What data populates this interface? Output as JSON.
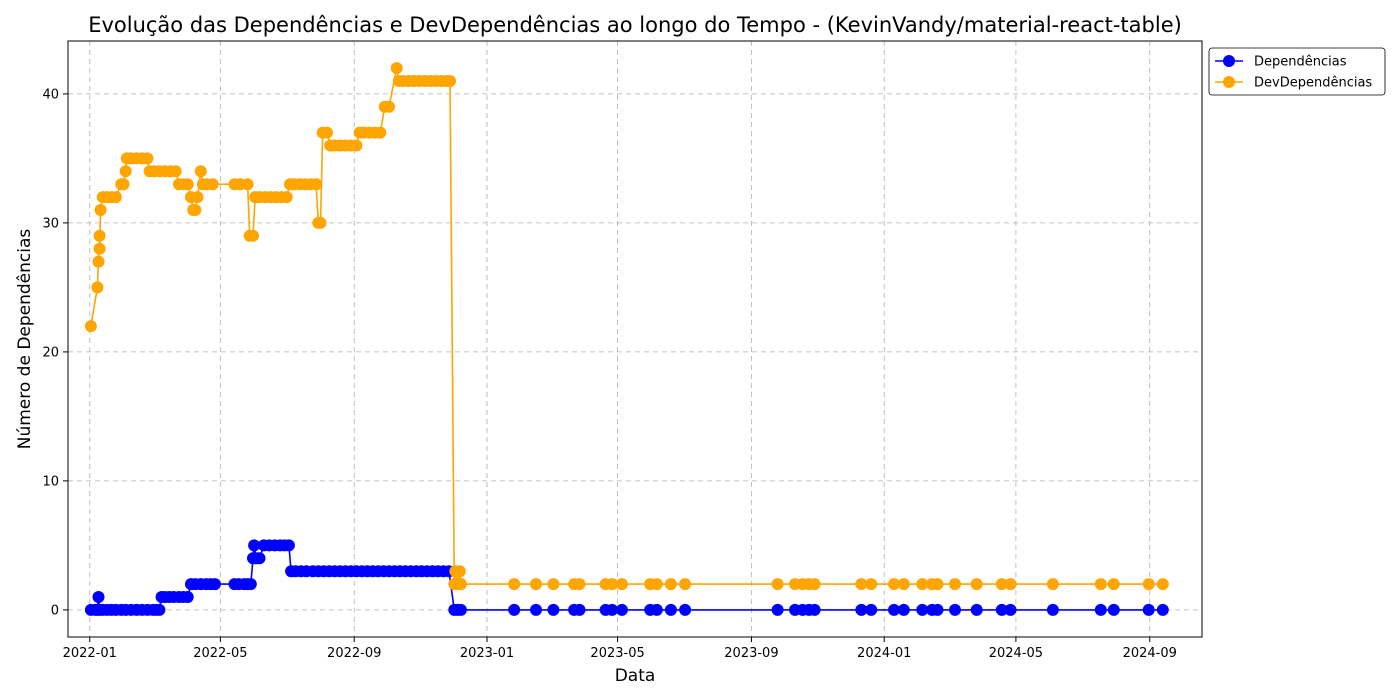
{
  "chart_data": {
    "type": "line",
    "title": "Evolução das Dependências e DevDependências ao longo do Tempo - (KevinVandy/material-react-table)",
    "xlabel": "Data",
    "ylabel": "Número de Dependências",
    "xlim": [
      "2021-12-12",
      "2024-10-19"
    ],
    "ylim": [
      -2.1,
      44.1
    ],
    "x_ticks": [
      "2022-01",
      "2022-05",
      "2022-09",
      "2023-01",
      "2023-05",
      "2023-09",
      "2024-01",
      "2024-05",
      "2024-09"
    ],
    "x_tick_dates": [
      "2022-01-01",
      "2022-05-01",
      "2022-09-01",
      "2023-01-01",
      "2023-05-01",
      "2023-09-01",
      "2024-01-01",
      "2024-05-01",
      "2024-09-01"
    ],
    "y_ticks": [
      0,
      10,
      20,
      30,
      40
    ],
    "grid": true,
    "legend_position": "outside-top-right",
    "series": [
      {
        "name": "Dependências",
        "color": "#0000ff",
        "points": [
          [
            "2022-01-02",
            0
          ],
          [
            "2022-01-06",
            0
          ],
          [
            "2022-01-08",
            0
          ],
          [
            "2022-01-09",
            1
          ],
          [
            "2022-01-10",
            0
          ],
          [
            "2022-01-13",
            0
          ],
          [
            "2022-01-17",
            0
          ],
          [
            "2022-01-21",
            0
          ],
          [
            "2022-01-25",
            0
          ],
          [
            "2022-01-30",
            0
          ],
          [
            "2022-02-03",
            0
          ],
          [
            "2022-02-08",
            0
          ],
          [
            "2022-02-13",
            0
          ],
          [
            "2022-02-18",
            0
          ],
          [
            "2022-02-23",
            0
          ],
          [
            "2022-02-28",
            0
          ],
          [
            "2022-03-03",
            0
          ],
          [
            "2022-03-06",
            0
          ],
          [
            "2022-03-08",
            1
          ],
          [
            "2022-03-11",
            1
          ],
          [
            "2022-03-15",
            1
          ],
          [
            "2022-03-19",
            1
          ],
          [
            "2022-03-24",
            1
          ],
          [
            "2022-03-28",
            1
          ],
          [
            "2022-04-01",
            1
          ],
          [
            "2022-04-04",
            2
          ],
          [
            "2022-04-08",
            2
          ],
          [
            "2022-04-13",
            2
          ],
          [
            "2022-04-18",
            2
          ],
          [
            "2022-04-22",
            2
          ],
          [
            "2022-04-26",
            2
          ],
          [
            "2022-05-14",
            2
          ],
          [
            "2022-05-18",
            2
          ],
          [
            "2022-05-23",
            2
          ],
          [
            "2022-05-26",
            2
          ],
          [
            "2022-05-29",
            2
          ],
          [
            "2022-05-31",
            4
          ],
          [
            "2022-06-01",
            5
          ],
          [
            "2022-06-03",
            4
          ],
          [
            "2022-06-06",
            4
          ],
          [
            "2022-06-10",
            5
          ],
          [
            "2022-06-15",
            5
          ],
          [
            "2022-06-20",
            5
          ],
          [
            "2022-06-25",
            5
          ],
          [
            "2022-06-29",
            5
          ],
          [
            "2022-07-03",
            5
          ],
          [
            "2022-07-05",
            3
          ],
          [
            "2022-07-09",
            3
          ],
          [
            "2022-07-14",
            3
          ],
          [
            "2022-07-19",
            3
          ],
          [
            "2022-07-25",
            3
          ],
          [
            "2022-07-30",
            3
          ],
          [
            "2022-08-04",
            3
          ],
          [
            "2022-08-09",
            3
          ],
          [
            "2022-08-14",
            3
          ],
          [
            "2022-08-19",
            3
          ],
          [
            "2022-08-24",
            3
          ],
          [
            "2022-08-29",
            3
          ],
          [
            "2022-09-03",
            3
          ],
          [
            "2022-09-08",
            3
          ],
          [
            "2022-09-13",
            3
          ],
          [
            "2022-09-18",
            3
          ],
          [
            "2022-09-23",
            3
          ],
          [
            "2022-09-28",
            3
          ],
          [
            "2022-10-03",
            3
          ],
          [
            "2022-10-08",
            3
          ],
          [
            "2022-10-13",
            3
          ],
          [
            "2022-10-18",
            3
          ],
          [
            "2022-10-23",
            3
          ],
          [
            "2022-10-28",
            3
          ],
          [
            "2022-11-02",
            3
          ],
          [
            "2022-11-07",
            3
          ],
          [
            "2022-11-12",
            3
          ],
          [
            "2022-11-17",
            3
          ],
          [
            "2022-11-22",
            3
          ],
          [
            "2022-11-27",
            3
          ],
          [
            "2022-12-02",
            0
          ],
          [
            "2022-12-05",
            0
          ],
          [
            "2022-12-08",
            0
          ],
          [
            "2023-01-26",
            0
          ],
          [
            "2023-02-15",
            0
          ],
          [
            "2023-03-03",
            0
          ],
          [
            "2023-03-22",
            0
          ],
          [
            "2023-03-27",
            0
          ],
          [
            "2023-04-20",
            0
          ],
          [
            "2023-04-26",
            0
          ],
          [
            "2023-05-05",
            0
          ],
          [
            "2023-05-31",
            0
          ],
          [
            "2023-06-06",
            0
          ],
          [
            "2023-06-19",
            0
          ],
          [
            "2023-07-02",
            0
          ],
          [
            "2023-09-25",
            0
          ],
          [
            "2023-10-11",
            0
          ],
          [
            "2023-10-18",
            0
          ],
          [
            "2023-10-24",
            0
          ],
          [
            "2023-10-29",
            0
          ],
          [
            "2023-12-11",
            0
          ],
          [
            "2023-12-20",
            0
          ],
          [
            "2024-01-10",
            0
          ],
          [
            "2024-01-19",
            0
          ],
          [
            "2024-02-05",
            0
          ],
          [
            "2024-02-14",
            0
          ],
          [
            "2024-02-19",
            0
          ],
          [
            "2024-03-06",
            0
          ],
          [
            "2024-03-26",
            0
          ],
          [
            "2024-04-18",
            0
          ],
          [
            "2024-04-26",
            0
          ],
          [
            "2024-06-04",
            0
          ],
          [
            "2024-07-18",
            0
          ],
          [
            "2024-07-30",
            0
          ],
          [
            "2024-08-31",
            0
          ],
          [
            "2024-09-13",
            0
          ]
        ]
      },
      {
        "name": "DevDependências",
        "color": "#ffa500",
        "points": [
          [
            "2022-01-02",
            22
          ],
          [
            "2022-01-08",
            25
          ],
          [
            "2022-01-09",
            27
          ],
          [
            "2022-01-10",
            29
          ],
          [
            "2022-01-10",
            28
          ],
          [
            "2022-01-11",
            31
          ],
          [
            "2022-01-13",
            32
          ],
          [
            "2022-01-17",
            32
          ],
          [
            "2022-01-21",
            32
          ],
          [
            "2022-01-25",
            32
          ],
          [
            "2022-01-30",
            33
          ],
          [
            "2022-02-01",
            33
          ],
          [
            "2022-02-03",
            34
          ],
          [
            "2022-02-04",
            35
          ],
          [
            "2022-02-08",
            35
          ],
          [
            "2022-02-13",
            35
          ],
          [
            "2022-02-18",
            35
          ],
          [
            "2022-02-23",
            35
          ],
          [
            "2022-02-25",
            34
          ],
          [
            "2022-03-01",
            34
          ],
          [
            "2022-03-06",
            34
          ],
          [
            "2022-03-11",
            34
          ],
          [
            "2022-03-16",
            34
          ],
          [
            "2022-03-21",
            34
          ],
          [
            "2022-03-24",
            33
          ],
          [
            "2022-03-28",
            33
          ],
          [
            "2022-04-01",
            33
          ],
          [
            "2022-04-04",
            32
          ],
          [
            "2022-04-06",
            31
          ],
          [
            "2022-04-08",
            31
          ],
          [
            "2022-04-10",
            32
          ],
          [
            "2022-04-13",
            34
          ],
          [
            "2022-04-15",
            33
          ],
          [
            "2022-04-19",
            33
          ],
          [
            "2022-04-24",
            33
          ],
          [
            "2022-05-14",
            33
          ],
          [
            "2022-05-19",
            33
          ],
          [
            "2022-05-26",
            33
          ],
          [
            "2022-05-28",
            29
          ],
          [
            "2022-05-31",
            29
          ],
          [
            "2022-06-02",
            32
          ],
          [
            "2022-06-06",
            32
          ],
          [
            "2022-06-11",
            32
          ],
          [
            "2022-06-16",
            32
          ],
          [
            "2022-06-21",
            32
          ],
          [
            "2022-06-26",
            32
          ],
          [
            "2022-07-01",
            32
          ],
          [
            "2022-07-04",
            33
          ],
          [
            "2022-07-08",
            33
          ],
          [
            "2022-07-13",
            33
          ],
          [
            "2022-07-18",
            33
          ],
          [
            "2022-07-23",
            33
          ],
          [
            "2022-07-28",
            33
          ],
          [
            "2022-07-30",
            30
          ],
          [
            "2022-08-01",
            30
          ],
          [
            "2022-08-03",
            37
          ],
          [
            "2022-08-07",
            37
          ],
          [
            "2022-08-10",
            36
          ],
          [
            "2022-08-14",
            36
          ],
          [
            "2022-08-19",
            36
          ],
          [
            "2022-08-24",
            36
          ],
          [
            "2022-08-29",
            36
          ],
          [
            "2022-09-03",
            36
          ],
          [
            "2022-09-06",
            37
          ],
          [
            "2022-09-10",
            37
          ],
          [
            "2022-09-15",
            37
          ],
          [
            "2022-09-20",
            37
          ],
          [
            "2022-09-25",
            37
          ],
          [
            "2022-09-29",
            39
          ],
          [
            "2022-10-03",
            39
          ],
          [
            "2022-10-10",
            42
          ],
          [
            "2022-10-12",
            41
          ],
          [
            "2022-10-16",
            41
          ],
          [
            "2022-10-21",
            41
          ],
          [
            "2022-10-26",
            41
          ],
          [
            "2022-10-31",
            41
          ],
          [
            "2022-11-05",
            41
          ],
          [
            "2022-11-10",
            41
          ],
          [
            "2022-11-15",
            41
          ],
          [
            "2022-11-20",
            41
          ],
          [
            "2022-11-25",
            41
          ],
          [
            "2022-11-28",
            41
          ],
          [
            "2022-12-02",
            2
          ],
          [
            "2022-12-03",
            3
          ],
          [
            "2022-12-05",
            2
          ],
          [
            "2022-12-07",
            3
          ],
          [
            "2022-12-08",
            2
          ],
          [
            "2023-01-26",
            2
          ],
          [
            "2023-02-15",
            2
          ],
          [
            "2023-03-03",
            2
          ],
          [
            "2023-03-22",
            2
          ],
          [
            "2023-03-27",
            2
          ],
          [
            "2023-04-20",
            2
          ],
          [
            "2023-04-26",
            2
          ],
          [
            "2023-05-05",
            2
          ],
          [
            "2023-05-31",
            2
          ],
          [
            "2023-06-06",
            2
          ],
          [
            "2023-06-19",
            2
          ],
          [
            "2023-07-02",
            2
          ],
          [
            "2023-09-25",
            2
          ],
          [
            "2023-10-11",
            2
          ],
          [
            "2023-10-18",
            2
          ],
          [
            "2023-10-24",
            2
          ],
          [
            "2023-10-29",
            2
          ],
          [
            "2023-12-11",
            2
          ],
          [
            "2023-12-20",
            2
          ],
          [
            "2024-01-10",
            2
          ],
          [
            "2024-01-19",
            2
          ],
          [
            "2024-02-05",
            2
          ],
          [
            "2024-02-14",
            2
          ],
          [
            "2024-02-19",
            2
          ],
          [
            "2024-03-06",
            2
          ],
          [
            "2024-03-26",
            2
          ],
          [
            "2024-04-18",
            2
          ],
          [
            "2024-04-26",
            2
          ],
          [
            "2024-06-04",
            2
          ],
          [
            "2024-07-18",
            2
          ],
          [
            "2024-07-30",
            2
          ],
          [
            "2024-08-31",
            2
          ],
          [
            "2024-09-13",
            2
          ]
        ]
      }
    ]
  }
}
